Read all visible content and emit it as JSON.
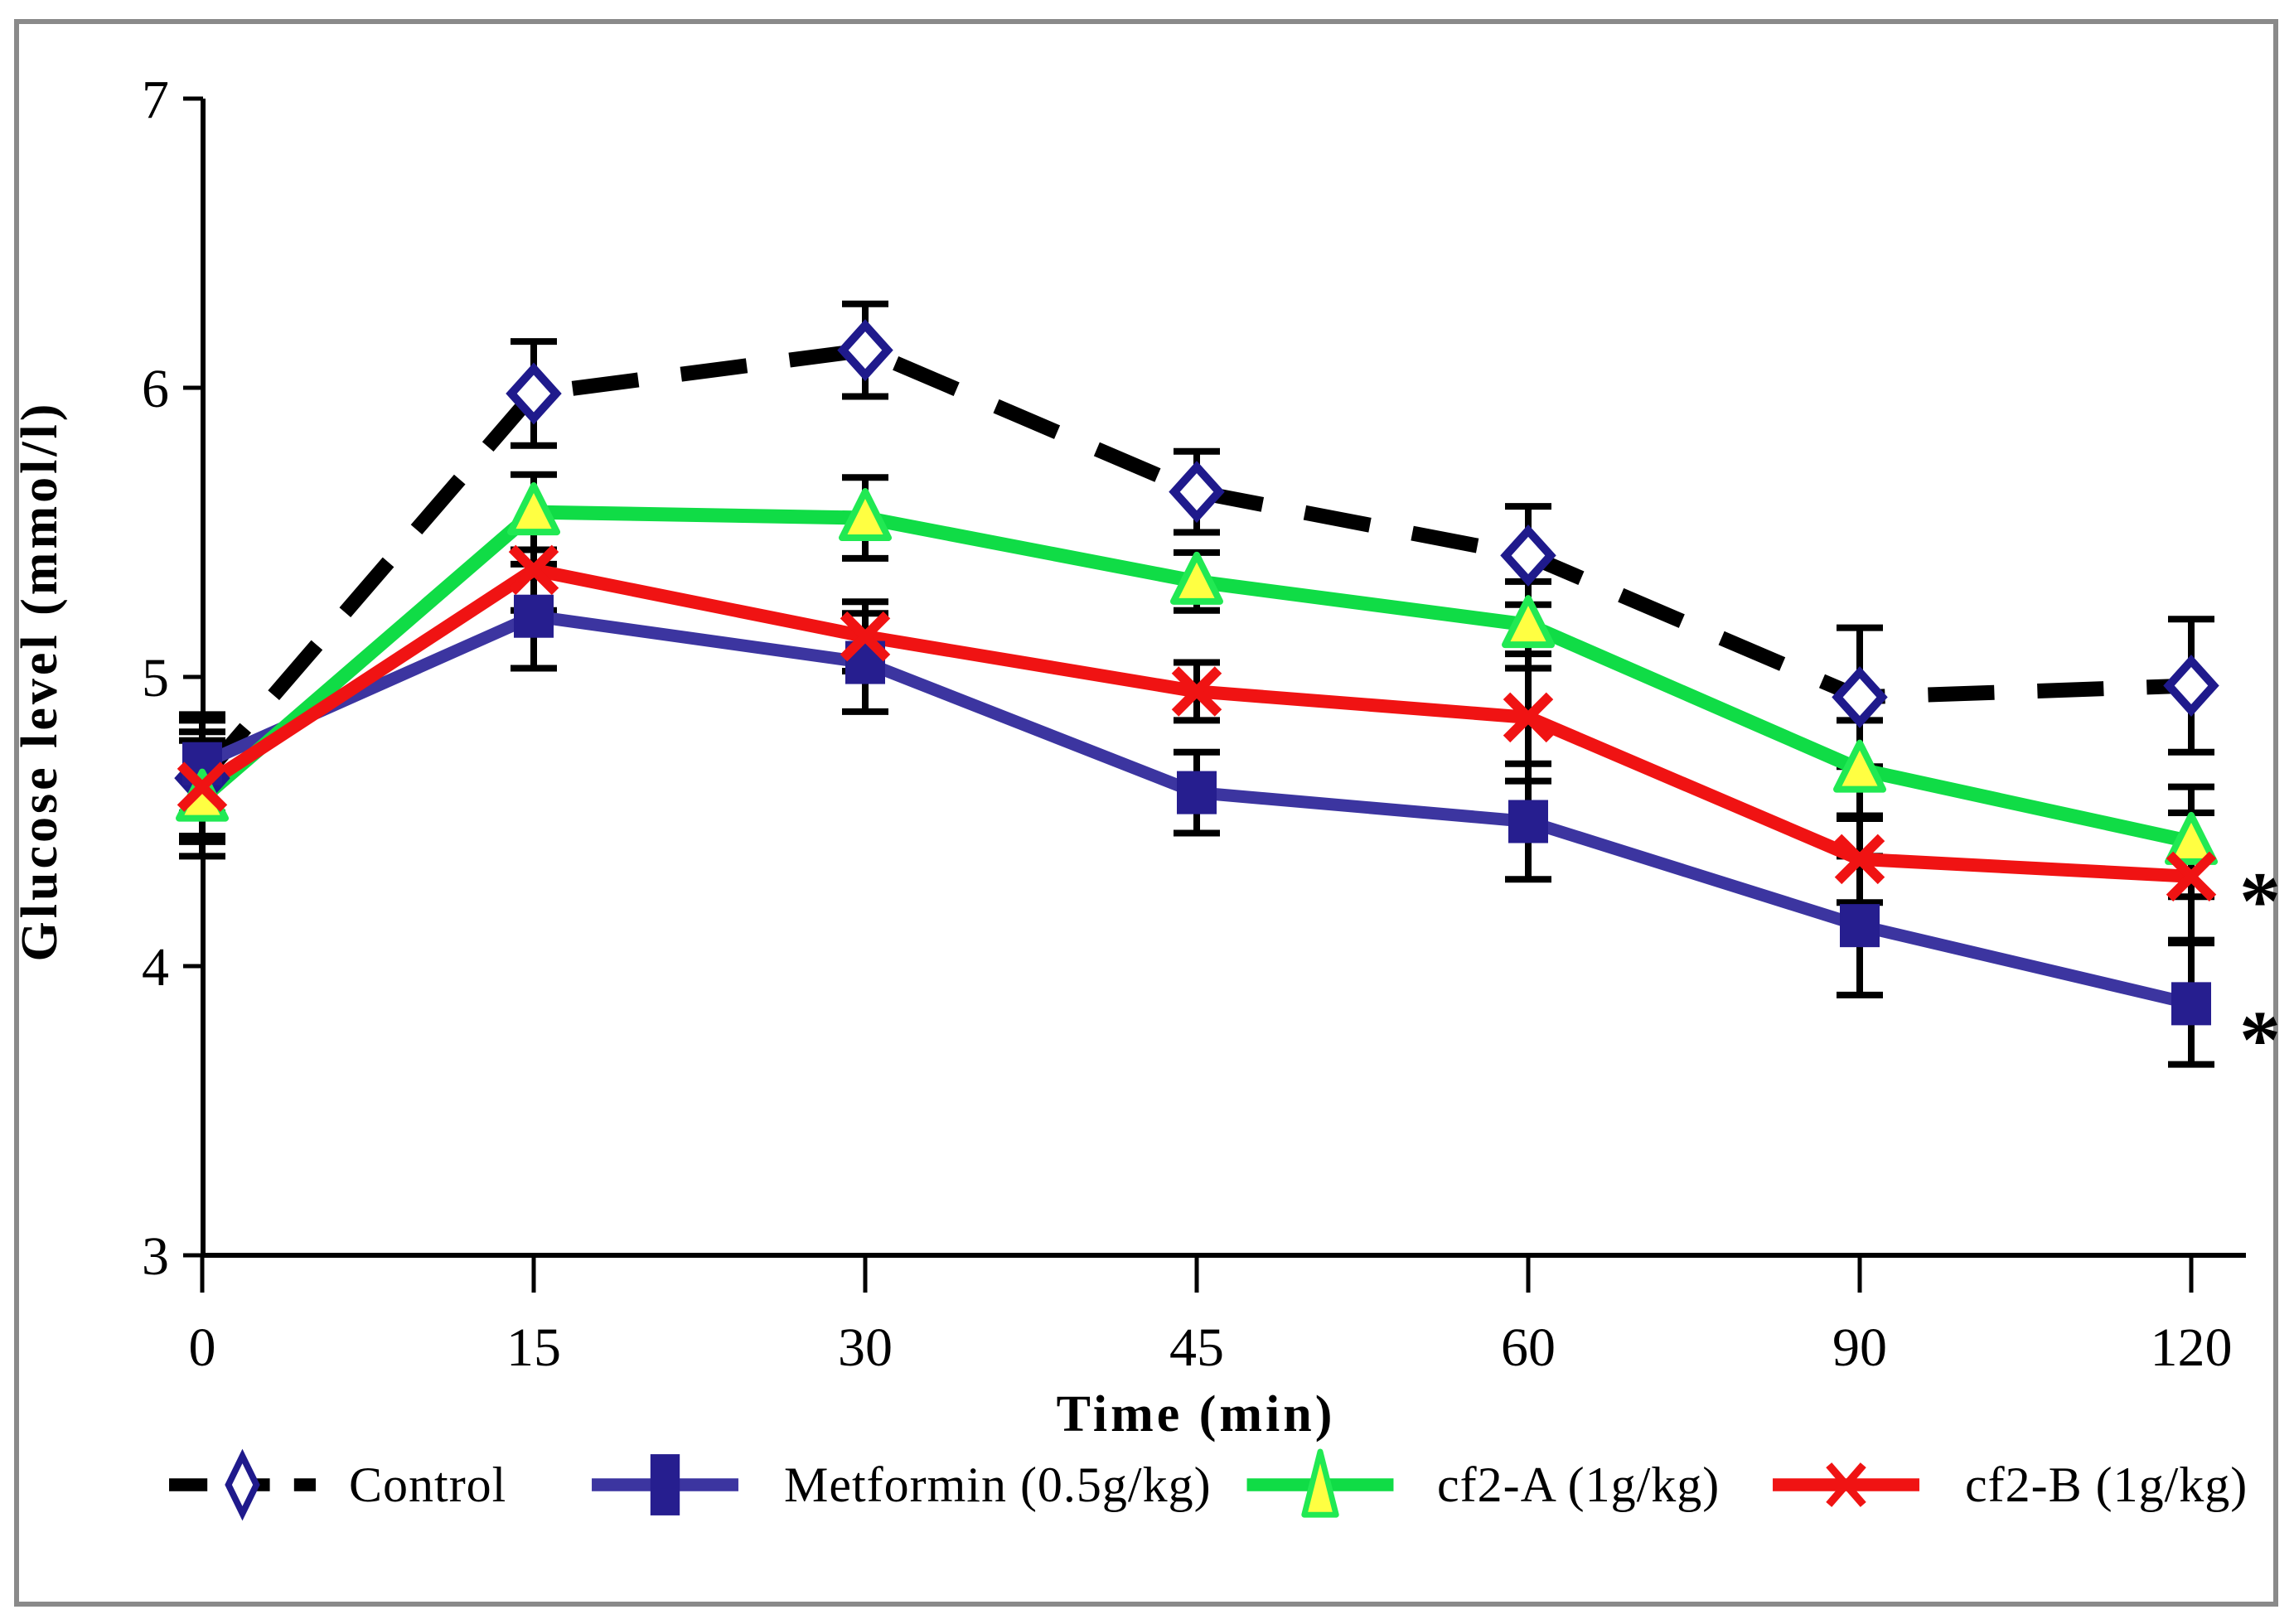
{
  "figure": {
    "background": "#ffffff",
    "border_color": "#8a8a8a",
    "error_bar_color": "#000000"
  },
  "chart_data": {
    "type": "line",
    "title": "",
    "xlabel": "Time (min)",
    "ylabel": "Glucose level (mmol/l)",
    "x_categories": [
      "0",
      "15",
      "30",
      "45",
      "60",
      "90",
      "120"
    ],
    "yticks": [
      "3",
      "4",
      "5",
      "6",
      "7"
    ],
    "ylim": [
      3,
      7
    ],
    "grid": false,
    "legend_position": "bottom",
    "series": [
      {
        "name": "Control",
        "line_color": "#000000",
        "line_style": "dashed",
        "line_width": 18,
        "marker": "open-diamond",
        "marker_stroke": "#1F1A8C",
        "marker_fill": "#ffffff",
        "values": [
          4.65,
          5.98,
          6.13,
          5.64,
          5.42,
          4.93,
          4.97
        ],
        "errors": [
          0.2,
          0.18,
          0.16,
          0.14,
          0.17,
          0.24,
          0.23
        ]
      },
      {
        "name": "Metformin (0.5g/kg)",
        "line_color": "#3C35A0",
        "line_style": "solid",
        "line_width": 15,
        "marker": "filled-square",
        "marker_stroke": "#261E8F",
        "marker_fill": "#261E8F",
        "values": [
          4.7,
          5.21,
          5.05,
          4.6,
          4.5,
          4.14,
          3.87
        ],
        "errors": [
          0.17,
          0.18,
          0.17,
          0.14,
          0.2,
          0.24,
          0.21
        ]
      },
      {
        "name": "cf2-A (1g/kg)",
        "line_color": "#10DC46",
        "line_style": "solid",
        "line_width": 17,
        "marker": "filled-triangle",
        "marker_stroke": "#21E953",
        "marker_fill": "#FFFF42",
        "values": [
          4.58,
          5.57,
          5.55,
          5.33,
          5.18,
          4.68,
          4.43
        ],
        "errors": [
          0.2,
          0.13,
          0.14,
          0.1,
          0.15,
          0.17,
          0.19
        ]
      },
      {
        "name": "cf2-B (1g/kg)",
        "line_color": "#F01313",
        "line_style": "solid",
        "line_width": 16,
        "marker": "x-cross",
        "marker_stroke": "#F01313",
        "marker_fill": "none",
        "values": [
          4.62,
          5.37,
          5.14,
          4.95,
          4.86,
          4.37,
          4.31
        ],
        "errors": [
          0.19,
          0.14,
          0.12,
          0.1,
          0.22,
          0.15,
          0.22
        ]
      }
    ],
    "annotations": [
      {
        "text": "*",
        "x_category": "120",
        "y_value": 4.28
      },
      {
        "text": "*",
        "x_category": "120",
        "y_value": 3.8
      }
    ]
  }
}
